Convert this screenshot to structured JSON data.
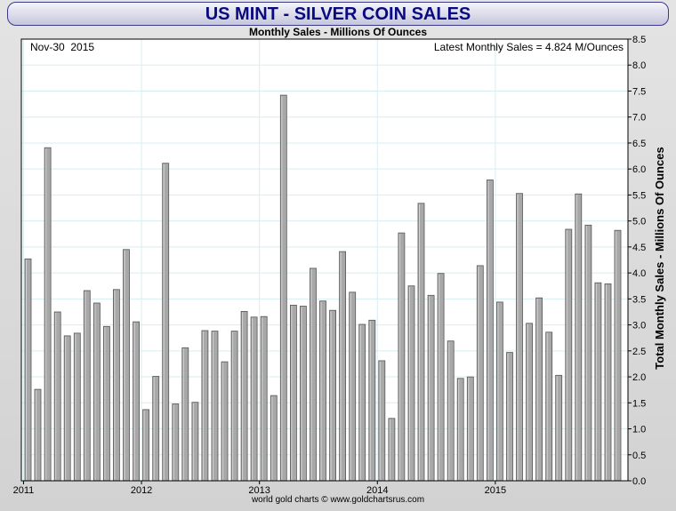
{
  "header": {
    "title": "US MINT - SILVER COIN SALES",
    "subtitle": "Monthly Sales - Millions Of Ounces"
  },
  "annotations": {
    "date": "Nov-30  2015",
    "latest": "Latest Monthly Sales = 4.824 M/Ounces"
  },
  "footer": {
    "credit": "world gold charts © www.goldchartsrus.com"
  },
  "colors": {
    "bar_fill": "#a8a8a8",
    "bar_stroke": "#555555",
    "grid": "#d6eef0",
    "title_text": "#0a0a80"
  },
  "chart_data": {
    "type": "bar",
    "title": "US MINT - SILVER COIN SALES",
    "subtitle": "Monthly Sales - Millions Of Ounces",
    "ylabel": "Total Monthly Sales - Millions Of Ounces",
    "ylim": [
      0,
      8.5
    ],
    "y_ticks": [
      "0.0",
      "0.5",
      "1.0",
      "1.5",
      "2.0",
      "2.5",
      "3.0",
      "3.5",
      "4.0",
      "4.5",
      "5.0",
      "5.5",
      "6.0",
      "6.5",
      "7.0",
      "7.5",
      "8.0",
      "8.5"
    ],
    "y_axis_position": "right",
    "grid": true,
    "x_tick_labels": [
      {
        "label": "2011",
        "index": 0
      },
      {
        "label": "2012",
        "index": 12
      },
      {
        "label": "2013",
        "index": 24
      },
      {
        "label": "2014",
        "index": 36
      },
      {
        "label": "2015",
        "index": 48
      }
    ],
    "values": [
      4.27,
      1.76,
      6.41,
      3.25,
      2.79,
      2.84,
      3.66,
      3.42,
      2.97,
      3.68,
      4.45,
      3.06,
      1.37,
      2.01,
      6.11,
      1.48,
      2.56,
      1.51,
      2.89,
      2.88,
      2.29,
      2.88,
      3.26,
      3.15,
      3.16,
      1.64,
      7.42,
      3.38,
      3.36,
      4.09,
      3.46,
      3.28,
      4.41,
      3.63,
      3.01,
      3.09,
      2.31,
      1.2,
      4.77,
      3.75,
      5.34,
      3.57,
      3.99,
      2.69,
      1.97,
      2.0,
      4.14,
      5.79,
      3.44,
      2.47,
      5.53,
      3.03,
      3.52,
      2.86,
      2.03,
      4.84,
      5.52,
      4.92,
      3.81,
      3.79,
      4.82
    ]
  }
}
